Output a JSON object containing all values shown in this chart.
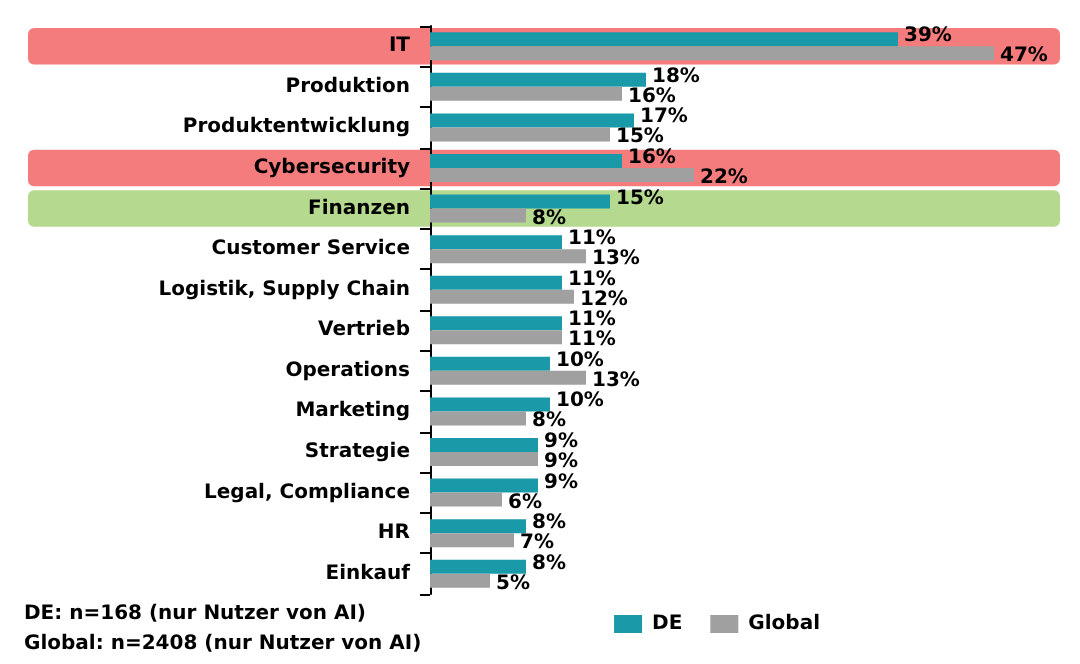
{
  "chart_data": {
    "type": "bar",
    "orientation": "horizontal",
    "categories": [
      "IT",
      "Produktion",
      "Produktentwicklung",
      "Cybersecurity",
      "Finanzen",
      "Customer Service",
      "Logistik, Supply Chain",
      "Vertrieb",
      "Operations",
      "Marketing",
      "Strategie",
      "Legal, Compliance",
      "HR",
      "Einkauf"
    ],
    "series": [
      {
        "name": "DE",
        "color": "#1a9aa8",
        "values": [
          39,
          18,
          17,
          16,
          15,
          11,
          11,
          11,
          10,
          10,
          9,
          9,
          8,
          8
        ],
        "value_labels": [
          "39%",
          "18%",
          "17%",
          "16%",
          "15%",
          "11%",
          "11%",
          "11%",
          "10%",
          "10%",
          "9%",
          "9%",
          "8%",
          "8%"
        ]
      },
      {
        "name": "Global",
        "color": "#a0a0a0",
        "values": [
          47,
          16,
          15,
          22,
          8,
          13,
          12,
          11,
          13,
          8,
          9,
          6,
          7,
          5
        ],
        "value_labels": [
          "47%",
          "16%",
          "15%",
          "22%",
          "8%",
          "13%",
          "12%",
          "11%",
          "13%",
          "8%",
          "9%",
          "6%",
          "7%",
          "5%"
        ]
      }
    ],
    "bands": [
      {
        "axis": "y",
        "from": "IT",
        "to": "IT",
        "color": "#f47c7c"
      },
      {
        "axis": "y",
        "from": "Cybersecurity",
        "to": "Cybersecurity",
        "color": "#f47c7c"
      },
      {
        "axis": "y",
        "from": "Finanzen",
        "to": "Finanzen",
        "color": "#b5d98e"
      }
    ],
    "annotations": [
      "DE: n=168 (nur Nutzer von AI)",
      "Global: n=2408 (nur Nutzer von AI)"
    ],
    "legend": "bottom right",
    "grid": false
  }
}
